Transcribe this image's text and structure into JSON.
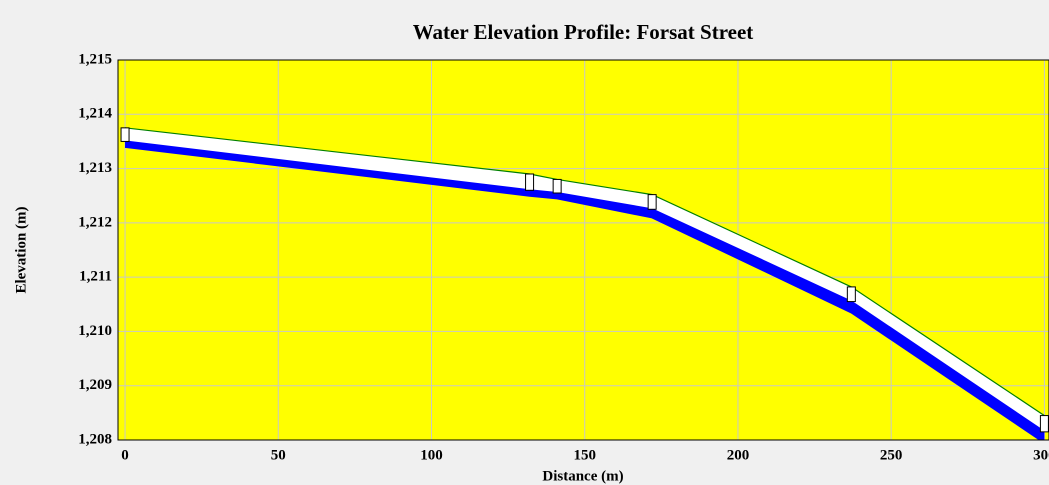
{
  "chart_data": {
    "type": "profile",
    "title": "Water Elevation Profile: Forsat Street",
    "xlabel": "Distance (m)",
    "ylabel": "Elevation (m)",
    "x": [
      0,
      132,
      141,
      172,
      237,
      300
    ],
    "series": [
      {
        "color": "#008000",
        "values": [
          1213.75,
          1212.9,
          1212.8,
          1212.52,
          1210.82,
          1208.45
        ]
      },
      {
        "color": "#0000ff",
        "values": [
          1213.5,
          1212.6,
          1212.55,
          1212.25,
          1210.55,
          1208.15
        ]
      },
      {
        "color": "#0000ff",
        "values": [
          1213.4,
          1212.5,
          1212.45,
          1212.1,
          1210.35,
          1207.95
        ]
      }
    ],
    "xlim": [
      -2.3,
      301.5
    ],
    "xticks": [
      0,
      50,
      100,
      150,
      200,
      250,
      300
    ],
    "ylim": [
      1208,
      1215
    ],
    "yticks": [
      {
        "value": 1208,
        "label": "1,208"
      },
      {
        "value": 1209,
        "label": "1,209"
      },
      {
        "value": 1210,
        "label": "1,210"
      },
      {
        "value": 1211,
        "label": "1,211"
      },
      {
        "value": 1212,
        "label": "1,212"
      },
      {
        "value": 1213,
        "label": "1,213"
      },
      {
        "value": 1214,
        "label": "1,214"
      },
      {
        "value": 1215,
        "label": "1,215"
      }
    ],
    "grid": true,
    "background": "#ffff00"
  }
}
